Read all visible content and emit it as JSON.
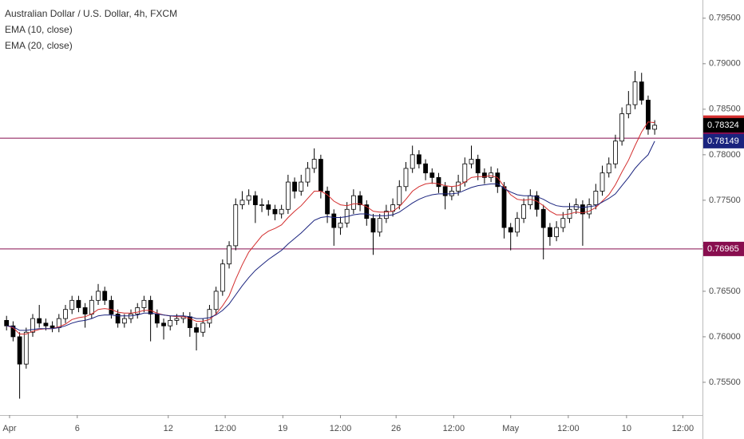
{
  "chart_data": {
    "type": "candlestick",
    "title": "Australian Dollar / U.S. Dollar, 4h, FXCM",
    "up_color": "#ffffff",
    "down_color": "#000000",
    "wick_color": "#000000",
    "last_price_color": "#000000",
    "grid": false,
    "ylim": [
      0.7514,
      0.797
    ],
    "yticks": [
      {
        "value": 0.755,
        "label": "0.75500"
      },
      {
        "value": 0.76,
        "label": "0.76000"
      },
      {
        "value": 0.765,
        "label": "0.76500"
      },
      {
        "value": 0.77,
        "label": "0.77000"
      },
      {
        "value": 0.775,
        "label": "0.77500"
      },
      {
        "value": 0.78,
        "label": "0.78000"
      },
      {
        "value": 0.785,
        "label": "0.78500"
      },
      {
        "value": 0.79,
        "label": "0.79000"
      },
      {
        "value": 0.795,
        "label": "0.79500"
      }
    ],
    "xlim": [
      -1,
      106.3
    ],
    "xticks": [
      {
        "value": 0.46,
        "label": "Apr"
      },
      {
        "value": 10.8,
        "label": "6"
      },
      {
        "value": 24.7,
        "label": "12"
      },
      {
        "value": 33.4,
        "label": "12:00"
      },
      {
        "value": 42.2,
        "label": "19"
      },
      {
        "value": 51,
        "label": "12:00"
      },
      {
        "value": 59.5,
        "label": "26"
      },
      {
        "value": 68.3,
        "label": "12:00"
      },
      {
        "value": 77,
        "label": "May"
      },
      {
        "value": 85.8,
        "label": "12:00"
      },
      {
        "value": 94.7,
        "label": "10"
      },
      {
        "value": 103.3,
        "label": "12:00"
      }
    ],
    "open": [
      0.7618,
      0.7612,
      0.76,
      0.757,
      0.7605,
      0.762,
      0.7615,
      0.7612,
      0.761,
      0.762,
      0.763,
      0.764,
      0.7632,
      0.7625,
      0.764,
      0.765,
      0.764,
      0.7625,
      0.7615,
      0.762,
      0.7625,
      0.7632,
      0.764,
      0.7625,
      0.7615,
      0.7612,
      0.7618,
      0.762,
      0.7622,
      0.761,
      0.7605,
      0.7615,
      0.763,
      0.765,
      0.768,
      0.77,
      0.7745,
      0.775,
      0.7755,
      0.7745,
      0.7745,
      0.774,
      0.7735,
      0.774,
      0.777,
      0.776,
      0.777,
      0.7785,
      0.7795,
      0.776,
      0.7735,
      0.772,
      0.7725,
      0.774,
      0.7755,
      0.7745,
      0.773,
      0.7715,
      0.773,
      0.7738,
      0.7745,
      0.7765,
      0.7785,
      0.78,
      0.779,
      0.778,
      0.7775,
      0.7765,
      0.7755,
      0.776,
      0.777,
      0.779,
      0.7795,
      0.778,
      0.7775,
      0.778,
      0.7765,
      0.772,
      0.7715,
      0.773,
      0.7745,
      0.7755,
      0.774,
      0.772,
      0.771,
      0.772,
      0.773,
      0.774,
      0.7745,
      0.7735,
      0.7745,
      0.776,
      0.778,
      0.779,
      0.7815,
      0.7845,
      0.7855,
      0.788,
      0.786,
      0.7828
    ],
    "high": [
      0.7623,
      0.7617,
      0.7605,
      0.761,
      0.7625,
      0.7635,
      0.762,
      0.7617,
      0.7625,
      0.7635,
      0.7645,
      0.7645,
      0.7637,
      0.7645,
      0.7658,
      0.7655,
      0.7645,
      0.763,
      0.7625,
      0.763,
      0.7637,
      0.7645,
      0.7645,
      0.763,
      0.762,
      0.7623,
      0.7625,
      0.7627,
      0.7627,
      0.7615,
      0.762,
      0.7635,
      0.7655,
      0.7685,
      0.7705,
      0.7752,
      0.776,
      0.7762,
      0.776,
      0.7752,
      0.775,
      0.7745,
      0.7745,
      0.7778,
      0.7775,
      0.7778,
      0.7792,
      0.7807,
      0.78,
      0.7765,
      0.774,
      0.7732,
      0.7748,
      0.7762,
      0.776,
      0.775,
      0.7735,
      0.7735,
      0.7745,
      0.7752,
      0.7772,
      0.7792,
      0.781,
      0.7805,
      0.7795,
      0.7785,
      0.778,
      0.777,
      0.7765,
      0.7778,
      0.7797,
      0.781,
      0.78,
      0.7785,
      0.7787,
      0.7785,
      0.777,
      0.7725,
      0.7737,
      0.7752,
      0.7762,
      0.776,
      0.7745,
      0.7725,
      0.7727,
      0.7737,
      0.7747,
      0.7752,
      0.775,
      0.7752,
      0.7768,
      0.7788,
      0.7797,
      0.7822,
      0.7852,
      0.787,
      0.7892,
      0.789,
      0.7865,
      0.7838
    ],
    "low": [
      0.7607,
      0.7595,
      0.7532,
      0.7565,
      0.76,
      0.761,
      0.7607,
      0.7605,
      0.7605,
      0.7615,
      0.7625,
      0.7627,
      0.761,
      0.762,
      0.7635,
      0.7635,
      0.762,
      0.761,
      0.761,
      0.7615,
      0.762,
      0.7627,
      0.7595,
      0.761,
      0.7597,
      0.7607,
      0.7613,
      0.7615,
      0.76,
      0.7585,
      0.76,
      0.761,
      0.7625,
      0.7645,
      0.7675,
      0.7695,
      0.774,
      0.7745,
      0.7725,
      0.7737,
      0.7733,
      0.7728,
      0.773,
      0.7735,
      0.7752,
      0.7755,
      0.7765,
      0.778,
      0.7752,
      0.7725,
      0.77,
      0.7712,
      0.772,
      0.7735,
      0.7738,
      0.7722,
      0.769,
      0.771,
      0.7725,
      0.7732,
      0.774,
      0.776,
      0.778,
      0.7785,
      0.7772,
      0.7768,
      0.7758,
      0.774,
      0.775,
      0.7755,
      0.7765,
      0.7785,
      0.7772,
      0.7768,
      0.777,
      0.7758,
      0.7708,
      0.7695,
      0.771,
      0.7725,
      0.774,
      0.7732,
      0.7685,
      0.77,
      0.7705,
      0.7715,
      0.7725,
      0.7735,
      0.77,
      0.773,
      0.774,
      0.7755,
      0.7775,
      0.7785,
      0.781,
      0.784,
      0.785,
      0.7855,
      0.7822,
      0.7822
    ],
    "close": [
      0.7612,
      0.76,
      0.757,
      0.7605,
      0.762,
      0.7615,
      0.7612,
      0.761,
      0.762,
      0.763,
      0.764,
      0.7632,
      0.7625,
      0.764,
      0.765,
      0.764,
      0.7625,
      0.7615,
      0.762,
      0.7625,
      0.7632,
      0.764,
      0.7625,
      0.7615,
      0.7612,
      0.7618,
      0.762,
      0.7622,
      0.761,
      0.7605,
      0.7615,
      0.763,
      0.765,
      0.768,
      0.77,
      0.7745,
      0.775,
      0.7755,
      0.7745,
      0.7745,
      0.774,
      0.7735,
      0.774,
      0.777,
      0.776,
      0.777,
      0.7785,
      0.7795,
      0.776,
      0.7735,
      0.772,
      0.7725,
      0.774,
      0.7755,
      0.7745,
      0.773,
      0.7715,
      0.773,
      0.7738,
      0.7745,
      0.7765,
      0.7785,
      0.78,
      0.779,
      0.778,
      0.7775,
      0.7765,
      0.7755,
      0.776,
      0.777,
      0.779,
      0.7795,
      0.778,
      0.7775,
      0.778,
      0.7765,
      0.772,
      0.7715,
      0.773,
      0.7745,
      0.7755,
      0.774,
      0.772,
      0.771,
      0.772,
      0.773,
      0.774,
      0.7745,
      0.7735,
      0.7745,
      0.776,
      0.778,
      0.779,
      0.7815,
      0.7845,
      0.7855,
      0.788,
      0.786,
      0.7828,
      0.78324
    ],
    "series": [
      {
        "name": "EMA (10, close)",
        "color": "#d32f2f",
        "values": [
          0.7612,
          0.761,
          0.7603,
          0.7603,
          0.7606,
          0.7608,
          0.7609,
          0.7609,
          0.7611,
          0.7614,
          0.7619,
          0.7621,
          0.7622,
          0.7625,
          0.763,
          0.7631,
          0.763,
          0.7627,
          0.7626,
          0.7626,
          0.7627,
          0.7629,
          0.7629,
          0.7626,
          0.7624,
          0.7623,
          0.7622,
          0.7622,
          0.762,
          0.7617,
          0.7617,
          0.7619,
          0.7625,
          0.7634,
          0.7645,
          0.7663,
          0.7679,
          0.7693,
          0.7702,
          0.7711,
          0.7716,
          0.7719,
          0.7723,
          0.7731,
          0.7738,
          0.7744,
          0.7752,
          0.776,
          0.776,
          0.7756,
          0.7749,
          0.7745,
          0.7744,
          0.7746,
          0.7746,
          0.7743,
          0.7738,
          0.7737,
          0.7737,
          0.7738,
          0.7743,
          0.7751,
          0.776,
          0.7765,
          0.7768,
          0.7769,
          0.7768,
          0.7766,
          0.7765,
          0.7766,
          0.777,
          0.7775,
          0.7776,
          0.7776,
          0.7777,
          0.7775,
          0.7765,
          0.7756,
          0.7751,
          0.775,
          0.7751,
          0.7749,
          0.7744,
          0.7738,
          0.7734,
          0.7734,
          0.7735,
          0.7737,
          0.7736,
          0.7738,
          0.7742,
          0.7749,
          0.7756,
          0.7767,
          0.7781,
          0.7794,
          0.781,
          0.7825,
          0.7836,
          0.78353
        ]
      },
      {
        "name": "EMA (20, close)",
        "color": "#1a237e",
        "values": [
          0.7612,
          0.7611,
          0.7607,
          0.7607,
          0.7608,
          0.7609,
          0.7609,
          0.7609,
          0.761,
          0.7612,
          0.7615,
          0.7617,
          0.7618,
          0.762,
          0.7623,
          0.7624,
          0.7624,
          0.7623,
          0.7623,
          0.7623,
          0.7624,
          0.7626,
          0.7626,
          0.7625,
          0.7624,
          0.7623,
          0.7623,
          0.7623,
          0.7622,
          0.762,
          0.762,
          0.7621,
          0.7624,
          0.7629,
          0.7636,
          0.7646,
          0.7656,
          0.7665,
          0.7673,
          0.7679,
          0.7685,
          0.769,
          0.7695,
          0.7702,
          0.7708,
          0.7714,
          0.7721,
          0.7728,
          0.7731,
          0.7732,
          0.7731,
          0.7731,
          0.7732,
          0.7734,
          0.7735,
          0.7735,
          0.7733,
          0.7733,
          0.7733,
          0.7734,
          0.7737,
          0.7742,
          0.7747,
          0.7751,
          0.7754,
          0.7756,
          0.7757,
          0.7757,
          0.7757,
          0.7758,
          0.7761,
          0.7764,
          0.7766,
          0.7767,
          0.7768,
          0.7768,
          0.7763,
          0.7759,
          0.7756,
          0.7755,
          0.7755,
          0.7754,
          0.7751,
          0.7747,
          0.7744,
          0.7743,
          0.7743,
          0.7743,
          0.7742,
          0.7743,
          0.7744,
          0.7748,
          0.7752,
          0.7757,
          0.7766,
          0.7775,
          0.7785,
          0.7793,
          0.78,
          0.78149
        ]
      }
    ],
    "levels": [
      {
        "value": 0.78182,
        "color": "#880e4f"
      },
      {
        "value": 0.76965,
        "color": "#880e4f"
      }
    ]
  }
}
